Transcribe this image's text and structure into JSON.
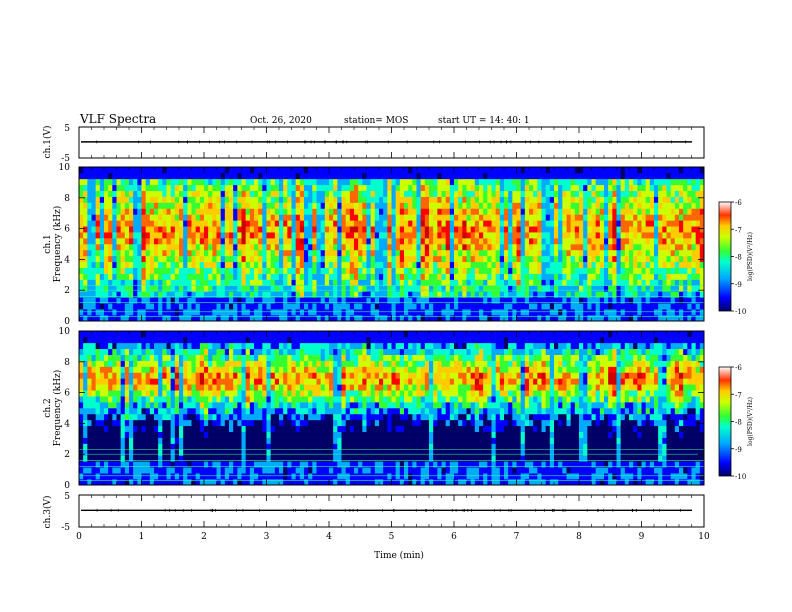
{
  "header": {
    "title": "VLF Spectra",
    "date": "Oct. 26, 2020",
    "station": "station= MOS",
    "start_ut": "start  UT =  14: 40: 1"
  },
  "chart_data": [
    {
      "type": "line",
      "name_label": "ch.1(V)",
      "ylim": [
        -5,
        5
      ],
      "y_ticks": [
        "5",
        "-5"
      ],
      "series": [
        {
          "values": [
            0.2
          ]
        }
      ],
      "xlim": [
        0,
        10
      ]
    },
    {
      "type": "heatmap",
      "ylabel": "ch.1\nFrequency (kHz)",
      "ylim": [
        0,
        10
      ],
      "y_ticks": [
        "0",
        "2",
        "4",
        "6",
        "8",
        "10"
      ],
      "xlim": [
        0,
        10
      ],
      "colorbar": {
        "label": "log(PSD)(V²/Hz)",
        "range": [
          -10,
          -6
        ],
        "ticks": [
          "-6",
          "-7",
          "-8",
          "-9",
          "-10"
        ]
      },
      "band_kHz": [
        2.5,
        9.2
      ]
    },
    {
      "type": "heatmap",
      "ylabel": "ch.2\nFrequency (kHz)",
      "ylim": [
        0,
        10
      ],
      "y_ticks": [
        "0",
        "2",
        "4",
        "6",
        "8",
        "10"
      ],
      "xlim": [
        0,
        10
      ],
      "colorbar": {
        "label": "log(PSD)(V²/Hz)",
        "range": [
          -10,
          -6
        ],
        "ticks": [
          "-6",
          "-7",
          "-8",
          "-9",
          "-10"
        ]
      },
      "band_kHz": [
        5.5,
        8.3
      ]
    },
    {
      "type": "line",
      "name_label": "ch.3(V)",
      "ylim": [
        -5,
        5
      ],
      "y_ticks": [
        "5",
        "-5"
      ],
      "series": [
        {
          "values": [
            0.2
          ]
        }
      ],
      "xlim": [
        0,
        10
      ]
    }
  ],
  "x_axis": {
    "label": "Time  (min)",
    "ticks": [
      "0",
      "1",
      "2",
      "3",
      "4",
      "5",
      "6",
      "7",
      "8",
      "9",
      "10"
    ]
  },
  "colors": {
    "colormap": [
      "#000066",
      "#0000ff",
      "#00aaff",
      "#00ffcc",
      "#33ff33",
      "#ccff00",
      "#ffcc00",
      "#ff6600",
      "#ff0000",
      "#cc0000"
    ],
    "axis": "#000000"
  }
}
